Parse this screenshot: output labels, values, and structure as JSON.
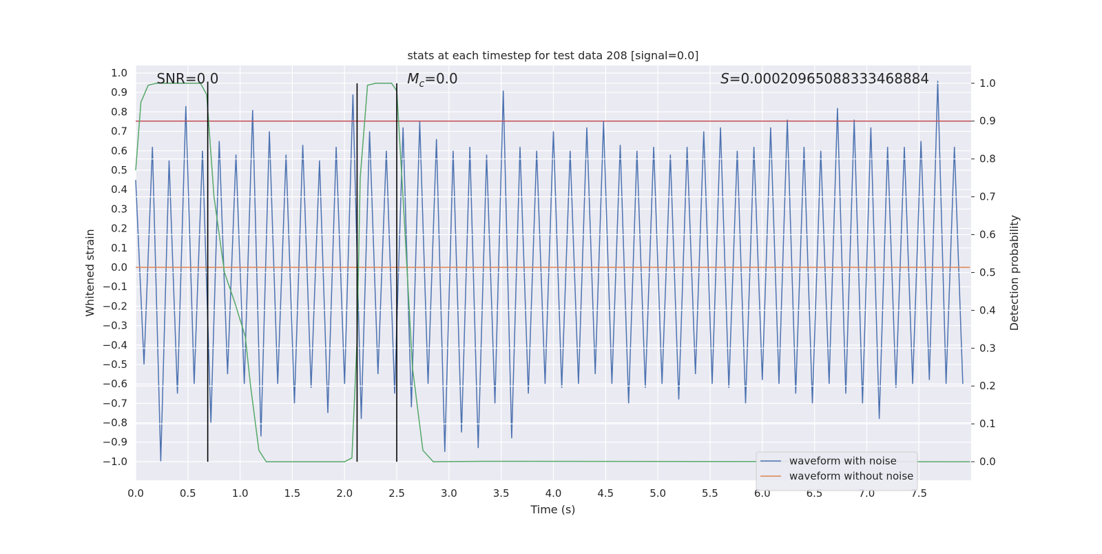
{
  "chart_data": {
    "type": "line",
    "title": "stats at each timestep for test data 208 [signal=0.0]",
    "xlabel": "Time (s)",
    "ylabel": "Whitened strain",
    "y2label": "Detection probability",
    "xlim": [
      0,
      8
    ],
    "ylim": [
      -1.096,
      1.039
    ],
    "y2lim": [
      -0.049,
      1.047
    ],
    "xticks": [
      {
        "value": 0,
        "label": "0.0"
      },
      {
        "value": 0.5,
        "label": "0.5"
      },
      {
        "value": 1,
        "label": "1.0"
      },
      {
        "value": 1.5,
        "label": "1.5"
      },
      {
        "value": 2,
        "label": "2.0"
      },
      {
        "value": 2.5,
        "label": "2.5"
      },
      {
        "value": 3,
        "label": "3.0"
      },
      {
        "value": 3.5,
        "label": "3.5"
      },
      {
        "value": 4,
        "label": "4.0"
      },
      {
        "value": 4.5,
        "label": "4.5"
      },
      {
        "value": 5,
        "label": "5.0"
      },
      {
        "value": 5.5,
        "label": "5.5"
      },
      {
        "value": 6,
        "label": "6.0"
      },
      {
        "value": 6.5,
        "label": "6.5"
      },
      {
        "value": 7,
        "label": "7.0"
      },
      {
        "value": 7.5,
        "label": "7.5"
      }
    ],
    "yticks": [
      {
        "value": -1,
        "label": "−1.0"
      },
      {
        "value": -0.9,
        "label": "−0.9"
      },
      {
        "value": -0.8,
        "label": "−0.8"
      },
      {
        "value": -0.7,
        "label": "−0.7"
      },
      {
        "value": -0.6,
        "label": "−0.6"
      },
      {
        "value": -0.5,
        "label": "−0.5"
      },
      {
        "value": -0.4,
        "label": "−0.4"
      },
      {
        "value": -0.3,
        "label": "−0.3"
      },
      {
        "value": -0.2,
        "label": "−0.2"
      },
      {
        "value": -0.1,
        "label": "−0.1"
      },
      {
        "value": 0,
        "label": "0.0"
      },
      {
        "value": 0.1,
        "label": "0.1"
      },
      {
        "value": 0.2,
        "label": "0.2"
      },
      {
        "value": 0.3,
        "label": "0.3"
      },
      {
        "value": 0.4,
        "label": "0.4"
      },
      {
        "value": 0.5,
        "label": "0.5"
      },
      {
        "value": 0.6,
        "label": "0.6"
      },
      {
        "value": 0.7,
        "label": "0.7"
      },
      {
        "value": 0.8,
        "label": "0.8"
      },
      {
        "value": 0.9,
        "label": "0.9"
      },
      {
        "value": 1,
        "label": "1.0"
      }
    ],
    "y2ticks": [
      {
        "value": 0,
        "label": "0.0"
      },
      {
        "value": 0.1,
        "label": "0.1"
      },
      {
        "value": 0.2,
        "label": "0.2"
      },
      {
        "value": 0.3,
        "label": "0.3"
      },
      {
        "value": 0.4,
        "label": "0.4"
      },
      {
        "value": 0.5,
        "label": "0.5"
      },
      {
        "value": 0.6,
        "label": "0.6"
      },
      {
        "value": 0.7,
        "label": "0.7"
      },
      {
        "value": 0.8,
        "label": "0.8"
      },
      {
        "value": 0.9,
        "label": "0.9"
      },
      {
        "value": 1,
        "label": "1.0"
      }
    ],
    "grid": true,
    "legend": "lower right",
    "series": [
      {
        "name": "waveform with noise",
        "color": "#4c72b0",
        "x": [
          0,
          0.08,
          0.16,
          0.24,
          0.32,
          0.4,
          0.48,
          0.56,
          0.64,
          0.72,
          0.8,
          0.88,
          0.96,
          1.04,
          1.12,
          1.2,
          1.28,
          1.36,
          1.44,
          1.52,
          1.6,
          1.68,
          1.76,
          1.84,
          1.92,
          2,
          2.08,
          2.16,
          2.24,
          2.32,
          2.4,
          2.48,
          2.56,
          2.64,
          2.72,
          2.8,
          2.88,
          2.96,
          3.04,
          3.12,
          3.2,
          3.28,
          3.36,
          3.44,
          3.52,
          3.6,
          3.68,
          3.76,
          3.84,
          3.92,
          4,
          4.08,
          4.16,
          4.24,
          4.32,
          4.4,
          4.48,
          4.56,
          4.64,
          4.72,
          4.8,
          4.88,
          4.96,
          5.04,
          5.12,
          5.2,
          5.28,
          5.36,
          5.44,
          5.52,
          5.6,
          5.68,
          5.76,
          5.84,
          5.92,
          6,
          6.08,
          6.16,
          6.24,
          6.32,
          6.4,
          6.48,
          6.56,
          6.64,
          6.72,
          6.8,
          6.88,
          6.96,
          7.04,
          7.12,
          7.2,
          7.28,
          7.36,
          7.44,
          7.52,
          7.6,
          7.68,
          7.76,
          7.84,
          7.92
        ],
        "values": [
          0.45,
          -0.5,
          0.62,
          -1.0,
          0.55,
          -0.65,
          0.83,
          -0.6,
          0.6,
          -0.8,
          0.65,
          -0.55,
          0.58,
          -0.6,
          0.81,
          -0.87,
          0.7,
          -0.6,
          0.58,
          -0.7,
          0.63,
          -0.62,
          0.55,
          -0.75,
          0.62,
          -0.6,
          0.89,
          -0.78,
          0.7,
          -0.55,
          0.6,
          -0.65,
          0.72,
          -0.72,
          0.75,
          -0.6,
          0.66,
          -0.95,
          0.6,
          -0.85,
          0.62,
          -0.93,
          0.58,
          -0.7,
          0.91,
          -0.88,
          0.62,
          -0.65,
          0.6,
          -0.6,
          0.7,
          -0.62,
          0.6,
          -0.6,
          0.72,
          -0.55,
          0.75,
          -0.6,
          0.63,
          -0.7,
          0.6,
          -0.62,
          0.62,
          -0.6,
          0.58,
          -0.68,
          0.62,
          -0.55,
          0.7,
          -0.6,
          0.72,
          -0.62,
          0.6,
          -0.7,
          0.62,
          -0.58,
          0.72,
          -0.6,
          0.76,
          -0.65,
          0.62,
          -0.7,
          0.6,
          -0.6,
          0.82,
          -0.65,
          0.76,
          -0.7,
          0.72,
          -0.78,
          0.62,
          -0.62,
          0.62,
          -0.6,
          0.65,
          -0.58,
          0.96,
          -0.6,
          0.62,
          -0.6
        ]
      },
      {
        "name": "waveform without noise",
        "color": "#dd8452",
        "x": [
          0,
          7.99
        ],
        "values": [
          0,
          0
        ]
      },
      {
        "color": "#55a868",
        "axis": "y2",
        "x": [
          0,
          0.05,
          0.12,
          0.2,
          0.62,
          0.68,
          0.75,
          0.85,
          0.95,
          1.05,
          1.1,
          1.18,
          1.25,
          2,
          2.07,
          2.12,
          2.15,
          2.22,
          2.3,
          2.45,
          2.5,
          2.57,
          2.65,
          2.75,
          2.85,
          3.35,
          7.99
        ],
        "values": [
          0.77,
          0.95,
          0.995,
          1,
          1,
          0.97,
          0.7,
          0.5,
          0.42,
          0.33,
          0.2,
          0.03,
          0,
          0,
          0.01,
          0.32,
          0.75,
          0.995,
          1,
          1,
          0.98,
          0.65,
          0.25,
          0.03,
          0,
          0.001,
          0
        ]
      }
    ],
    "hlines": [
      {
        "value": 0.9,
        "axis": "y2",
        "color": "#c44e52"
      }
    ],
    "vlines": [
      0.69,
      2.12,
      2.5
    ],
    "annotations": [
      {
        "text": "SNR=0.0",
        "x": 0.2
      },
      {
        "symbol": "M",
        "subscript": "c",
        "text": "=0.0",
        "x": 2.6
      },
      {
        "symbol": "S",
        "text": "=0.00020965088333468884",
        "x": 5.6
      }
    ]
  }
}
